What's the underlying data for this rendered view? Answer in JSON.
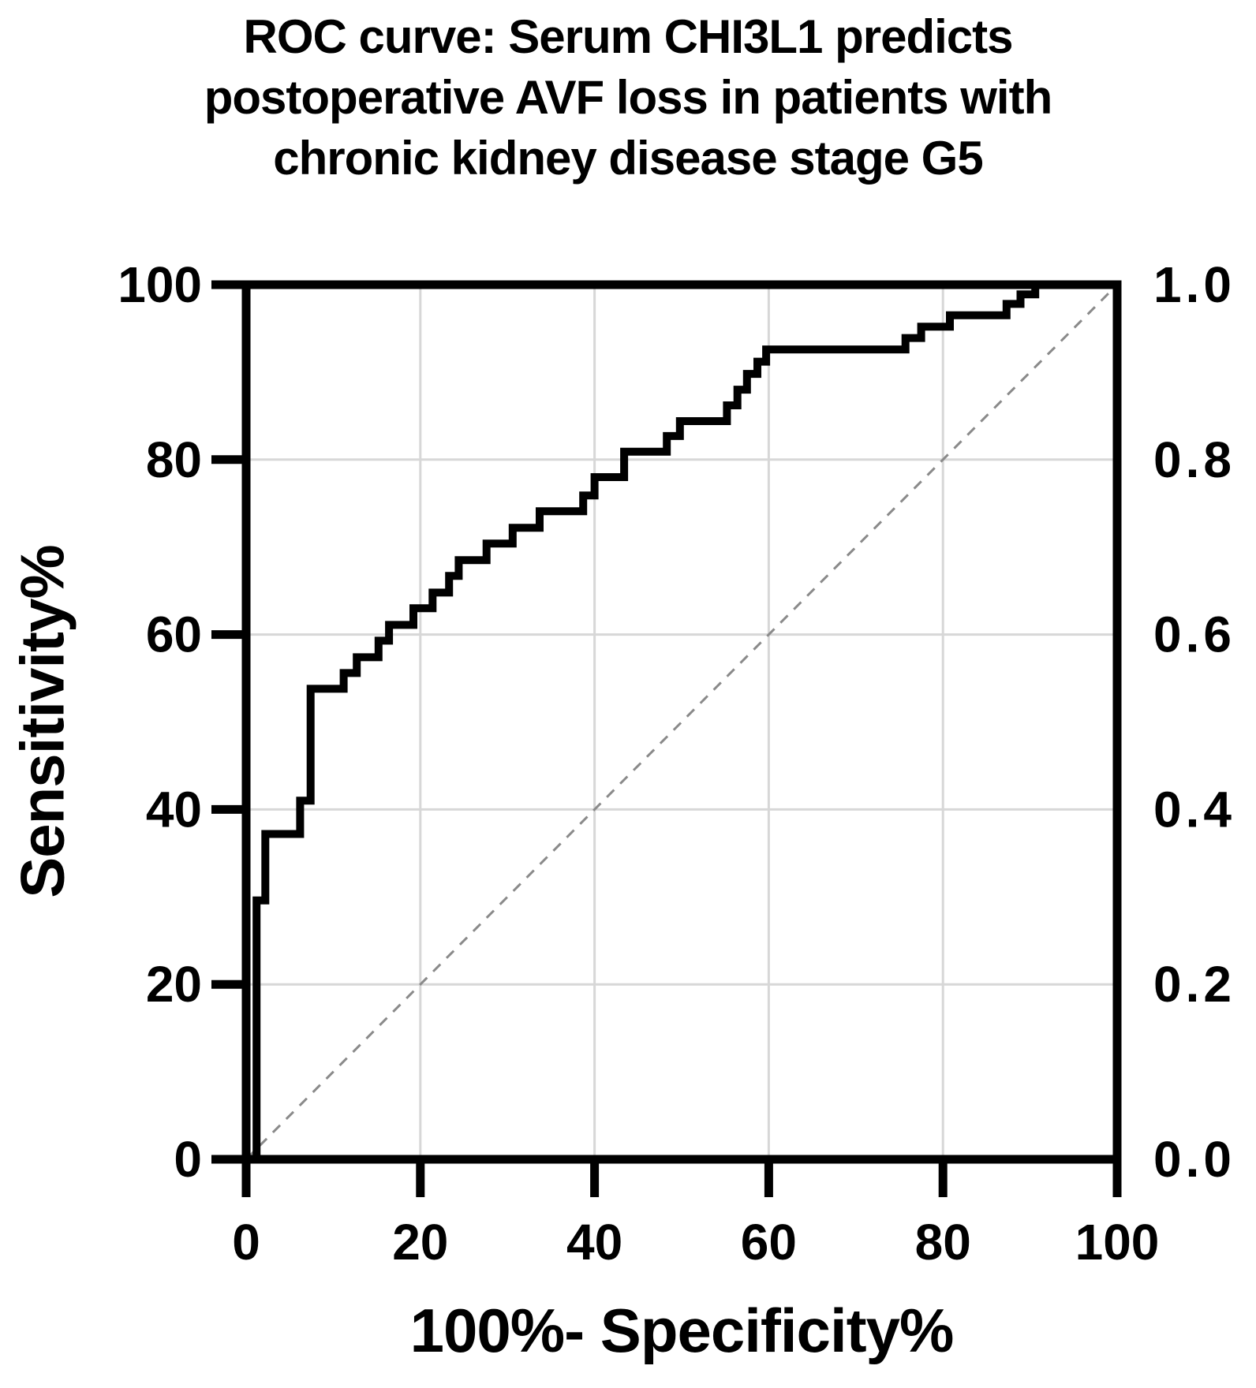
{
  "figure": {
    "title_lines": [
      "ROC curve: Serum CHI3L1 predicts",
      "postoperative AVF loss in patients with",
      "chronic kidney disease stage G5"
    ]
  },
  "chart_data": {
    "type": "line",
    "subtype": "roc_step_curve",
    "title": "ROC curve: Serum CHI3L1 predicts postoperative AVF loss in patients with chronic kidney disease stage G5",
    "xlabel": "100%- Specificity%",
    "ylabel": "Sensitivity%",
    "xlim": [
      0,
      100
    ],
    "ylim": [
      0,
      100
    ],
    "grid": true,
    "legend_position": "none",
    "x_axis": {
      "ticks": [
        {
          "v": 0,
          "label": "0"
        },
        {
          "v": 20,
          "label": "20"
        },
        {
          "v": 40,
          "label": "40"
        },
        {
          "v": 60,
          "label": "60"
        },
        {
          "v": 80,
          "label": "80"
        },
        {
          "v": 100,
          "label": "100"
        }
      ]
    },
    "y_axis_left": {
      "ticks": [
        {
          "v": 0,
          "label": "0"
        },
        {
          "v": 20,
          "label": "20"
        },
        {
          "v": 40,
          "label": "40"
        },
        {
          "v": 60,
          "label": "60"
        },
        {
          "v": 80,
          "label": "80"
        },
        {
          "v": 100,
          "label": "100"
        }
      ]
    },
    "y_axis_right": {
      "ticks": [
        {
          "v": 0,
          "label": "0.0"
        },
        {
          "v": 20,
          "label": "0.2"
        },
        {
          "v": 40,
          "label": "0.4"
        },
        {
          "v": 60,
          "label": "0.6"
        },
        {
          "v": 80,
          "label": "0.8"
        },
        {
          "v": 100,
          "label": "1.0"
        }
      ]
    },
    "series": [
      {
        "id": "roc_curve",
        "style": "step",
        "color": "#000000",
        "stroke_width": 10,
        "points": [
          [
            0,
            0
          ],
          [
            1.2,
            0
          ],
          [
            1.2,
            29.6
          ],
          [
            2.2,
            29.6
          ],
          [
            2.2,
            37.2
          ],
          [
            6.2,
            37.2
          ],
          [
            6.2,
            41
          ],
          [
            7.4,
            41
          ],
          [
            7.4,
            53.8
          ],
          [
            11.2,
            53.8
          ],
          [
            11.2,
            55.6
          ],
          [
            12.7,
            55.6
          ],
          [
            12.7,
            57.4
          ],
          [
            15.2,
            57.4
          ],
          [
            15.2,
            59.3
          ],
          [
            16.4,
            59.3
          ],
          [
            16.4,
            61.1
          ],
          [
            19.2,
            61.1
          ],
          [
            19.2,
            63
          ],
          [
            21.4,
            63
          ],
          [
            21.4,
            64.8
          ],
          [
            23.3,
            64.8
          ],
          [
            23.3,
            66.7
          ],
          [
            24.4,
            66.7
          ],
          [
            24.4,
            68.5
          ],
          [
            27.6,
            68.5
          ],
          [
            27.6,
            70.4
          ],
          [
            30.6,
            70.4
          ],
          [
            30.6,
            72.2
          ],
          [
            33.7,
            72.2
          ],
          [
            33.7,
            74.1
          ],
          [
            38.7,
            74.1
          ],
          [
            38.7,
            75.9
          ],
          [
            40,
            75.9
          ],
          [
            40,
            78
          ],
          [
            43.4,
            78
          ],
          [
            43.4,
            80.9
          ],
          [
            48.3,
            80.9
          ],
          [
            48.3,
            82.7
          ],
          [
            49.8,
            82.7
          ],
          [
            49.8,
            84.4
          ],
          [
            55.2,
            84.4
          ],
          [
            55.2,
            86.2
          ],
          [
            56.4,
            86.2
          ],
          [
            56.4,
            88
          ],
          [
            57.5,
            88
          ],
          [
            57.5,
            89.8
          ],
          [
            58.7,
            89.8
          ],
          [
            58.7,
            91.2
          ],
          [
            59.7,
            91.2
          ],
          [
            59.7,
            92.6
          ],
          [
            75.7,
            92.6
          ],
          [
            75.7,
            93.9
          ],
          [
            77.5,
            93.9
          ],
          [
            77.5,
            95.2
          ],
          [
            80.8,
            95.2
          ],
          [
            80.8,
            96.5
          ],
          [
            87.3,
            96.5
          ],
          [
            87.3,
            97.8
          ],
          [
            88.9,
            97.8
          ],
          [
            88.9,
            98.9
          ],
          [
            90.6,
            98.9
          ],
          [
            90.6,
            100
          ],
          [
            100,
            100
          ]
        ]
      },
      {
        "id": "reference_diagonal",
        "style": "dashed",
        "color": "#8a8a8a",
        "stroke_width": 3,
        "points": [
          [
            0,
            0
          ],
          [
            100,
            100
          ]
        ]
      }
    ],
    "colors": {
      "curve": "#000000",
      "grid": "#d7d7d7",
      "diagonal": "#8a8a8a",
      "axis": "#000000",
      "background": "#ffffff"
    }
  }
}
